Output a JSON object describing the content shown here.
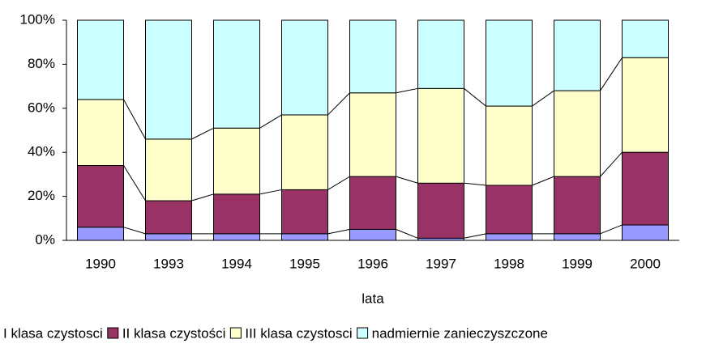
{
  "chart_data": {
    "type": "stacked_bar_100",
    "x_label": "lata",
    "categories": [
      "1990",
      "1993",
      "1994",
      "1995",
      "1996",
      "1997",
      "1998",
      "1999",
      "2000"
    ],
    "series": [
      {
        "name": "I klasa czystosci",
        "color": "#9999ff",
        "values": [
          6,
          3,
          3,
          3,
          5,
          1,
          3,
          3,
          7
        ]
      },
      {
        "name": "II klasa czystości",
        "color": "#993366",
        "values": [
          28,
          15,
          18,
          20,
          24,
          25,
          22,
          26,
          33
        ]
      },
      {
        "name": "III klasa czystosci",
        "color": "#ffffcc",
        "values": [
          30,
          28,
          30,
          34,
          38,
          43,
          36,
          39,
          43
        ]
      },
      {
        "name": "nadmiernie zanieczyszczone",
        "color": "#ccffff",
        "values": [
          36,
          54,
          49,
          43,
          33,
          31,
          39,
          32,
          17
        ]
      }
    ],
    "ylim": [
      0,
      100
    ],
    "yticks": [
      {
        "value": 0,
        "label": "0%"
      },
      {
        "value": 20,
        "label": "20%"
      },
      {
        "value": 40,
        "label": "40%"
      },
      {
        "value": 60,
        "label": "60%"
      },
      {
        "value": 80,
        "label": "80%"
      },
      {
        "value": 100,
        "label": "100%"
      }
    ],
    "legend": "bottom"
  }
}
